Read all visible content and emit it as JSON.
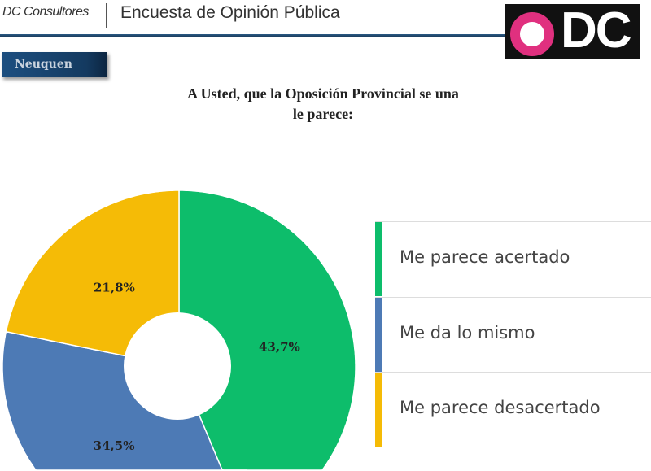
{
  "header": {
    "brand": "DC Consultores",
    "title": "Encuesta de Opinión Pública",
    "logo_text": "ODC"
  },
  "region": "Neuquen",
  "chart_data": {
    "type": "pie",
    "donut": true,
    "title": "A Usted, que la Oposición Provincial se una le parece:",
    "title_lines": [
      "A Usted, que la Oposición Provincial se una",
      "le parece:"
    ],
    "categories": [
      "Me parece acertado",
      "Me da lo mismo",
      "Me parece desacertado"
    ],
    "values": [
      43.7,
      34.5,
      21.8
    ],
    "labels": [
      "43,7%",
      "34,5%",
      "21,8%"
    ],
    "colors": [
      "#0dbd6b",
      "#4d7ab5",
      "#f5bb06"
    ],
    "legend": "right"
  }
}
